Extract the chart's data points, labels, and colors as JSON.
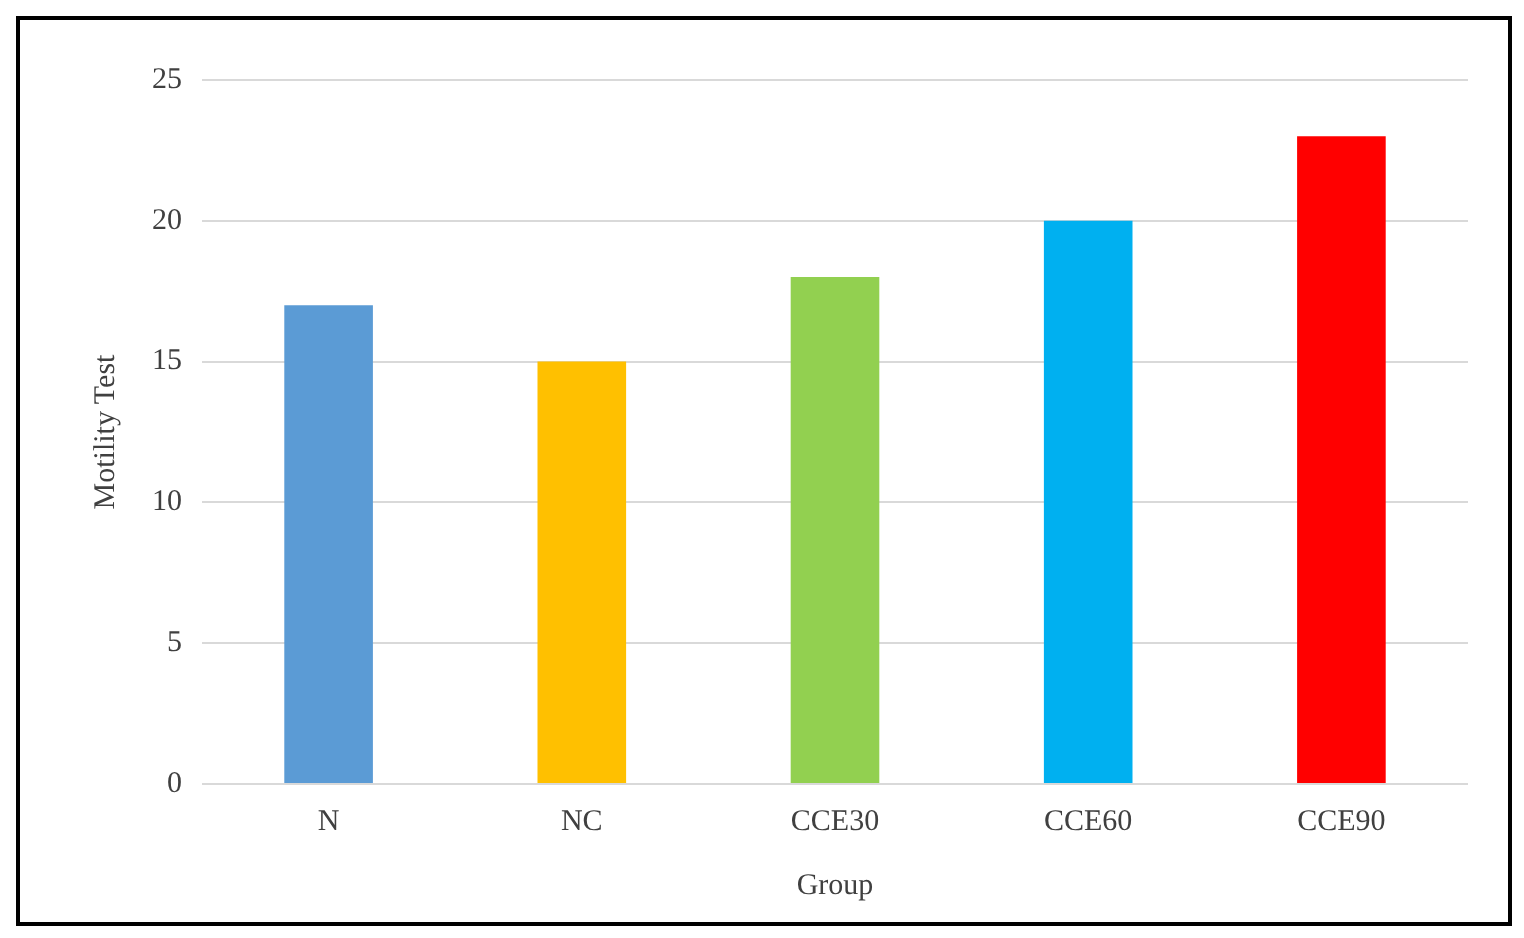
{
  "chart_data": {
    "type": "bar",
    "xlabel": "Group",
    "ylabel": "Motility Test",
    "categories": [
      "N",
      "NC",
      "CCE30",
      "CCE60",
      "CCE90"
    ],
    "values": [
      17,
      15,
      18,
      20,
      23
    ],
    "colors": [
      "#5b9bd5",
      "#ffc000",
      "#92d050",
      "#00b0f0",
      "#ff0000"
    ],
    "ylim": [
      0,
      25
    ],
    "yticks": [
      0,
      5,
      10,
      15,
      20,
      25
    ],
    "grid": "y"
  }
}
